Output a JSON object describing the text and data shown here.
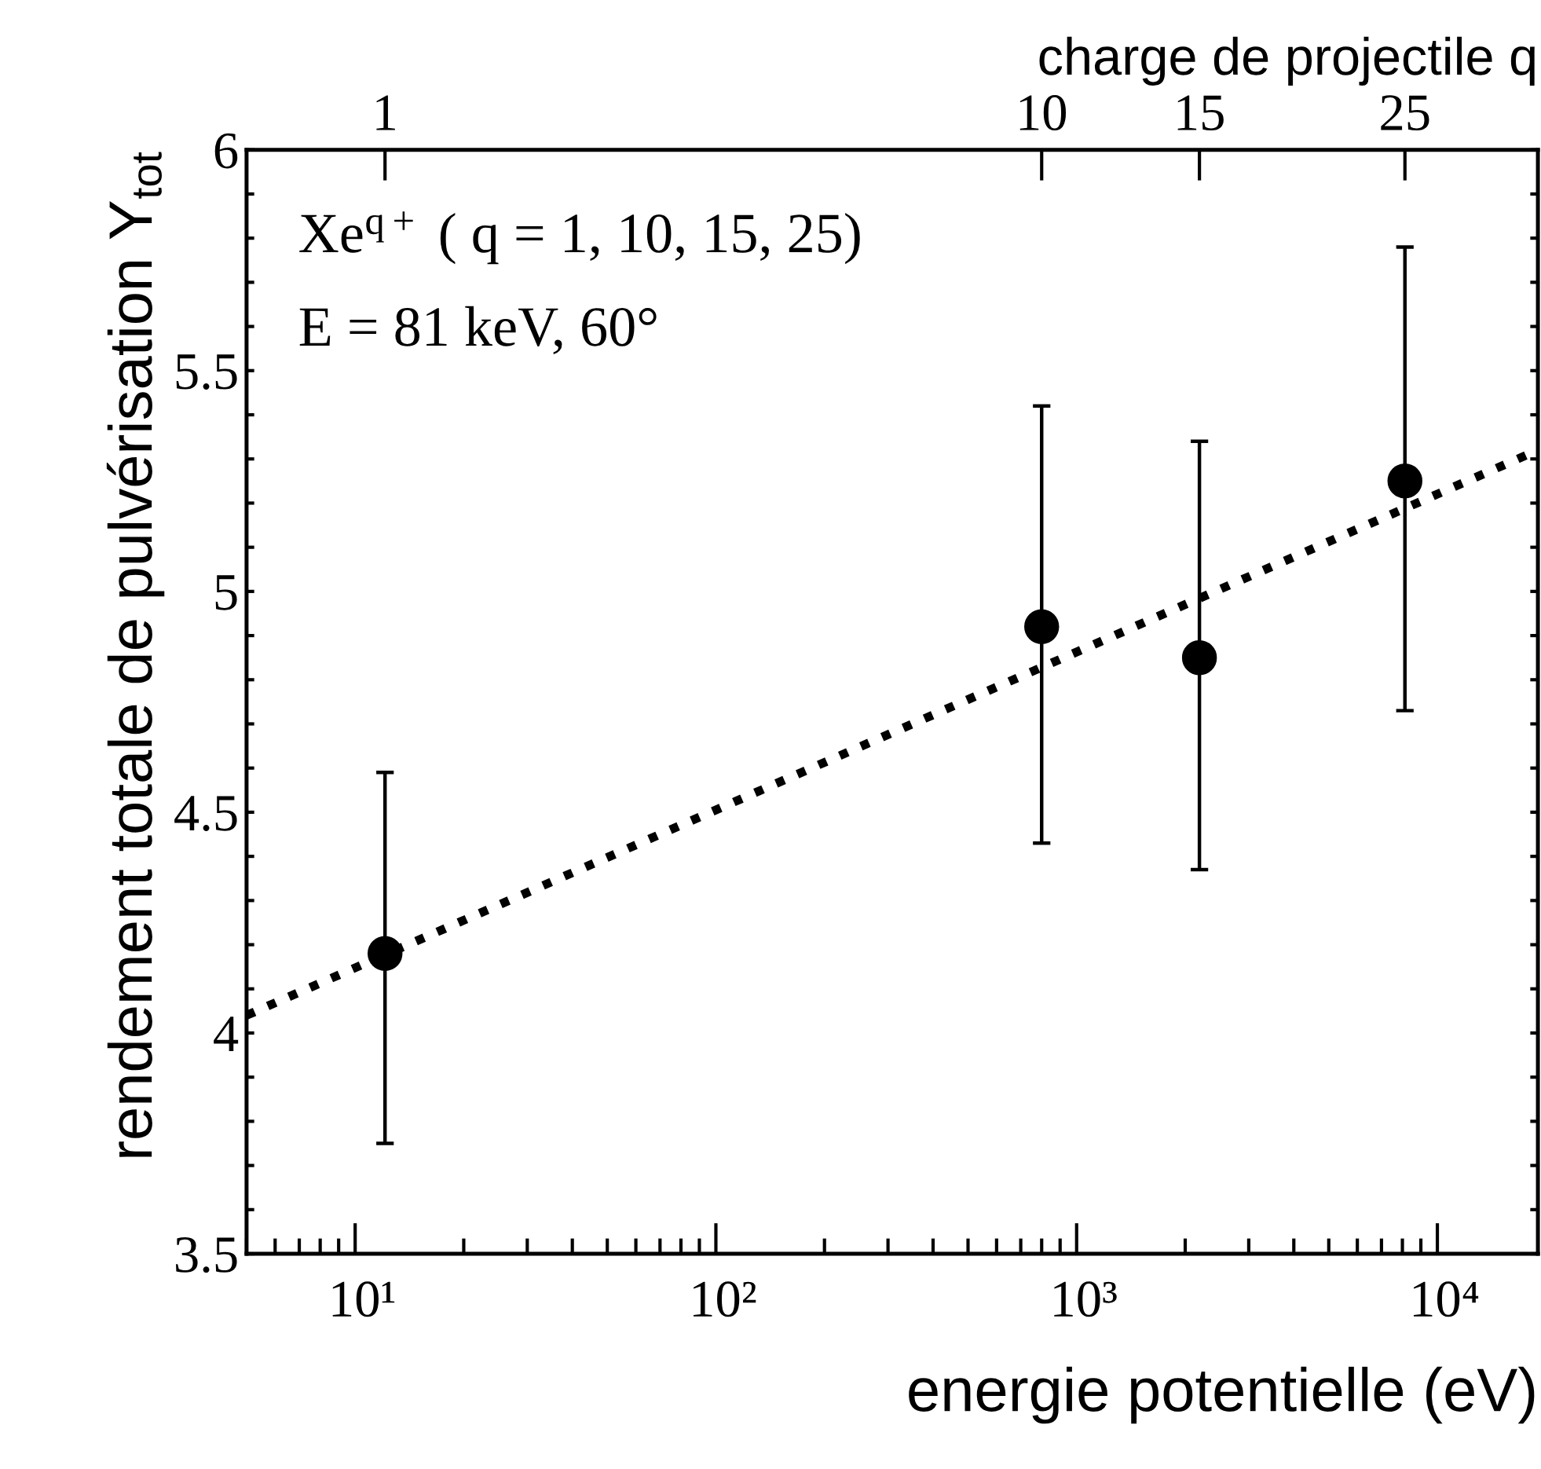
{
  "chart_data": {
    "type": "scatter",
    "xlabel": "energie potentielle (eV)",
    "ylabel": "rendement totale de pulvérisation Y$_{tot}$",
    "x2label": "charge de projectile q",
    "log": "x",
    "xlim": [
      5,
      19000
    ],
    "xticks": [
      {
        "value": 10,
        "label": "10¹"
      },
      {
        "value": 100,
        "label": "10²"
      },
      {
        "value": 1000,
        "label": "10³"
      },
      {
        "value": 10000,
        "label": "10⁴"
      }
    ],
    "ylim": [
      3.5,
      6
    ],
    "yticks": [
      3.5,
      {
        "value": 3.6,
        "label": null
      },
      {
        "value": 3.7,
        "label": null
      },
      {
        "value": 3.8,
        "label": null
      },
      {
        "value": 3.9,
        "label": null
      },
      4,
      {
        "value": 4.1,
        "label": null
      },
      {
        "value": 4.2,
        "label": null
      },
      {
        "value": 4.3,
        "label": null
      },
      {
        "value": 4.4,
        "label": null
      },
      4.5,
      {
        "value": 4.6,
        "label": null
      },
      {
        "value": 4.7,
        "label": null
      },
      {
        "value": 4.8,
        "label": null
      },
      {
        "value": 4.9,
        "label": null
      },
      5,
      {
        "value": 5.1,
        "label": null
      },
      {
        "value": 5.2,
        "label": null
      },
      {
        "value": 5.3,
        "label": null
      },
      {
        "value": 5.4,
        "label": null
      },
      5.5,
      {
        "value": 5.6,
        "label": null
      },
      {
        "value": 5.7,
        "label": null
      },
      {
        "value": 5.8,
        "label": null
      },
      {
        "value": 5.9,
        "label": null
      },
      6
    ],
    "grid": false,
    "legend": false,
    "series": [
      {
        "color": "#000000",
        "marker": "circle",
        "x": [
          12.1,
          800,
          2190,
          8130
        ],
        "values": [
          4.18,
          4.92,
          4.85,
          5.25
        ],
        "errors": [
          [
            3.75,
            4.59
          ],
          [
            4.43,
            5.42
          ],
          [
            4.37,
            5.34
          ],
          [
            4.73,
            5.78
          ]
        ]
      },
      {
        "type": "line",
        "color": "#000000",
        "line_style": "dotted",
        "marker": "none",
        "x": [
          5,
          19000
        ],
        "values": [
          4.04,
          5.32
        ]
      }
    ],
    "annotations": [
      "Xe$^{q+}$ ( q = 1, 10, 15, 25)",
      "E = 81 keV, 60°",
      "1",
      "10",
      "15",
      "25"
    ]
  }
}
